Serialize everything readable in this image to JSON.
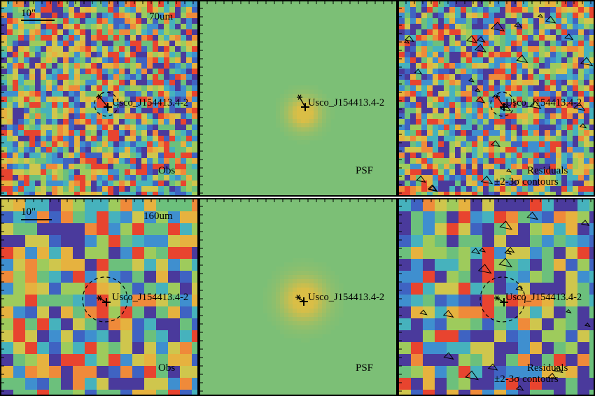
{
  "colors": {
    "background_psf": "#7cbf76",
    "palette": [
      "#4a3a9c",
      "#3f63c2",
      "#3f8fcf",
      "#46b2bd",
      "#6cc07c",
      "#9ecb5c",
      "#cfc64d",
      "#e6b23f",
      "#ef8a3a",
      "#e8442f"
    ],
    "markers": "#000000"
  },
  "rows": [
    {
      "band": "70um",
      "scale_label": "10\"",
      "panels": [
        {
          "kind": "observed",
          "label": "Obs",
          "source": "Usco_J154413.4-2",
          "circle": true,
          "contours": false
        },
        {
          "kind": "psf",
          "label": "PSF",
          "source": "Usco_J154413.4-2",
          "circle": false,
          "contours": false
        },
        {
          "kind": "residual",
          "label": "Residuals",
          "label2": "±2-3σ contours",
          "source": "Usco_J154413.4-2",
          "circle": true,
          "contours": true
        }
      ]
    },
    {
      "band": "160um",
      "scale_label": "10\"",
      "panels": [
        {
          "kind": "observed",
          "label": "Obs",
          "source": "Usco_J154413.4-2",
          "circle": true,
          "contours": false
        },
        {
          "kind": "psf",
          "label": "PSF",
          "source": "Usco_J154413.4-2",
          "circle": false,
          "contours": false
        },
        {
          "kind": "residual",
          "label": "Residuals",
          "label2": "±2-3σ contours",
          "source": "Usco_J154413.4-2",
          "circle": true,
          "contours": true
        }
      ]
    }
  ]
}
